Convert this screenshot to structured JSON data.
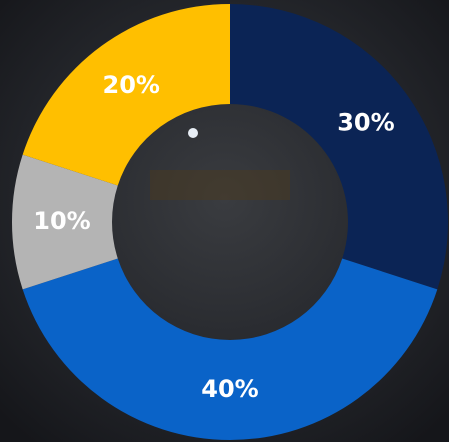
{
  "chart_data": {
    "type": "donut",
    "values": [
      30,
      40,
      10,
      20
    ],
    "value_labels": [
      "30%",
      "40%",
      "10%",
      "20%"
    ],
    "colors": [
      "#0b2455",
      "#0a63c8",
      "#b4b4b4",
      "#ffbf00"
    ]
  }
}
